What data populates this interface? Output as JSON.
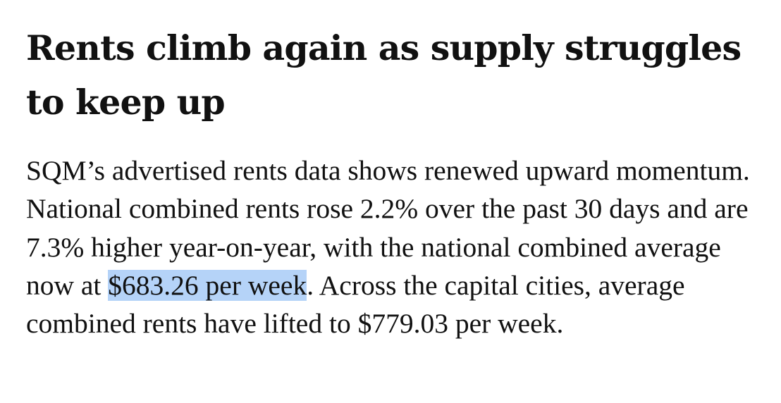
{
  "article": {
    "headline": "Rents climb again as supply struggles to keep up",
    "body_before_highlight": "SQM’s advertised rents data shows renewed upward momentum. National combined rents rose 2.2% over the past 30 days and are 7.3% higher year-on-year, with the national combined average now at ",
    "highlighted_text": "$683.26 per week",
    "body_after_highlight": ". Across the capital cities, average combined rents have lifted to $779.03 per week.",
    "highlight_color": "#b5d3f8",
    "text_color": "#111111"
  }
}
